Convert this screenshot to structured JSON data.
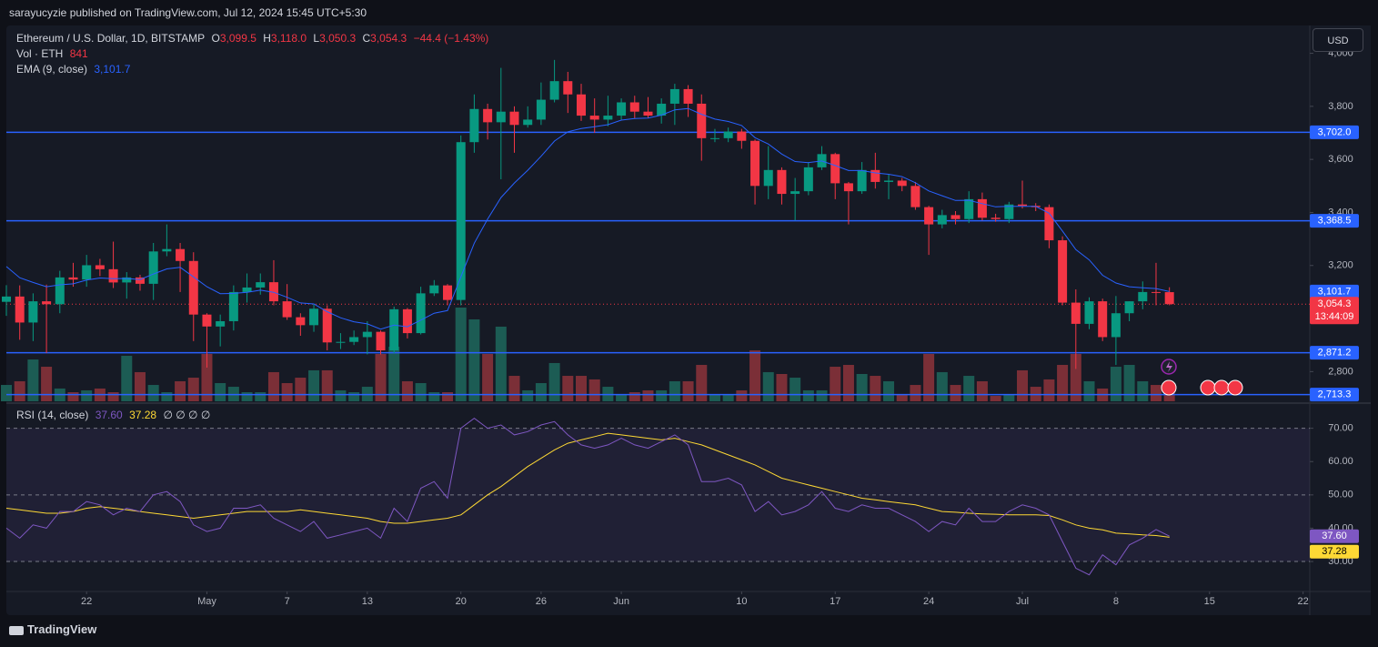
{
  "chart_data": {
    "type": "candlestick",
    "published": "sarayucyzie published on TradingView.com, Jul 12, 2024 15:45 UTC+5:30",
    "legend": {
      "symbol": "Ethereum / U.S. Dollar, 1D, BITSTAMP",
      "o": "O",
      "o_value": "3,099.5",
      "h": "H",
      "h_value": "3,118.0",
      "l": "L",
      "l_value": "3,050.3",
      "c": "C",
      "c_value": "3,054.3",
      "change": "−44.4 (−1.43%)"
    },
    "volume_legend": {
      "name": "Vol · ETH",
      "value": "841"
    },
    "currency": "USD",
    "brand": "TradingView",
    "up_color": "#089981",
    "down_color": "#f23645",
    "volume_up_color": "#1c5c54",
    "volume_down_color": "#7b2f37",
    "x": [
      "2024-04-16",
      "2024-04-17",
      "2024-04-18",
      "2024-04-19",
      "2024-04-20",
      "2024-04-21",
      "2024-04-22",
      "2024-04-23",
      "2024-04-24",
      "2024-04-25",
      "2024-04-26",
      "2024-04-27",
      "2024-04-28",
      "2024-04-29",
      "2024-04-30",
      "2024-05-01",
      "2024-05-02",
      "2024-05-03",
      "2024-05-04",
      "2024-05-05",
      "2024-05-06",
      "2024-05-07",
      "2024-05-08",
      "2024-05-09",
      "2024-05-10",
      "2024-05-11",
      "2024-05-12",
      "2024-05-13",
      "2024-05-14",
      "2024-05-15",
      "2024-05-16",
      "2024-05-17",
      "2024-05-18",
      "2024-05-19",
      "2024-05-20",
      "2024-05-21",
      "2024-05-22",
      "2024-05-23",
      "2024-05-24",
      "2024-05-25",
      "2024-05-26",
      "2024-05-27",
      "2024-05-28",
      "2024-05-29",
      "2024-05-30",
      "2024-05-31",
      "2024-06-01",
      "2024-06-02",
      "2024-06-03",
      "2024-06-04",
      "2024-06-05",
      "2024-06-06",
      "2024-06-07",
      "2024-06-08",
      "2024-06-09",
      "2024-06-10",
      "2024-06-11",
      "2024-06-12",
      "2024-06-13",
      "2024-06-14",
      "2024-06-15",
      "2024-06-16",
      "2024-06-17",
      "2024-06-18",
      "2024-06-19",
      "2024-06-20",
      "2024-06-21",
      "2024-06-22",
      "2024-06-23",
      "2024-06-24",
      "2024-06-25",
      "2024-06-26",
      "2024-06-27",
      "2024-06-28",
      "2024-06-29",
      "2024-06-30",
      "2024-07-01",
      "2024-07-02",
      "2024-07-03",
      "2024-07-04",
      "2024-07-05",
      "2024-07-06",
      "2024-07-07",
      "2024-07-08",
      "2024-07-09",
      "2024-07-10",
      "2024-07-11",
      "2024-07-12"
    ],
    "open": [
      3063,
      3083,
      2985,
      3065,
      3054,
      3155,
      3147,
      3201,
      3186,
      3136,
      3155,
      3131,
      3253,
      3262,
      3217,
      3015,
      2970,
      2990,
      3100,
      3117,
      3137,
      3065,
      3005,
      2975,
      3037,
      2910,
      2912,
      2930,
      2950,
      2880,
      3035,
      2945,
      3095,
      3125,
      3070,
      3665,
      3790,
      3740,
      3780,
      3730,
      3750,
      3825,
      3895,
      3845,
      3765,
      3750,
      3765,
      3815,
      3780,
      3765,
      3810,
      3865,
      3810,
      3680,
      3680,
      3705,
      3670,
      3500,
      3560,
      3470,
      3480,
      3570,
      3620,
      3510,
      3480,
      3560,
      3515,
      3520,
      3500,
      3420,
      3355,
      3390,
      3375,
      3450,
      3380,
      3375,
      3430,
      3425,
      3420,
      3295,
      3060,
      2980,
      3065,
      2930,
      3020,
      3065,
      3100,
      3099.5
    ],
    "high": [
      3126,
      3125,
      3095,
      3128,
      3180,
      3210,
      3240,
      3225,
      3290,
      3175,
      3165,
      3285,
      3355,
      3285,
      3250,
      3020,
      3015,
      3125,
      3170,
      3170,
      3220,
      3130,
      3020,
      3055,
      3050,
      2945,
      2955,
      2990,
      2955,
      3045,
      3040,
      3120,
      3145,
      3130,
      3690,
      3845,
      3810,
      3945,
      3800,
      3800,
      3890,
      3975,
      3930,
      3885,
      3830,
      3840,
      3830,
      3840,
      3835,
      3830,
      3885,
      3880,
      3845,
      3715,
      3720,
      3715,
      3675,
      3650,
      3570,
      3530,
      3590,
      3650,
      3625,
      3515,
      3590,
      3625,
      3545,
      3530,
      3515,
      3425,
      3410,
      3405,
      3480,
      3475,
      3395,
      3440,
      3520,
      3435,
      3430,
      3310,
      3110,
      3080,
      3075,
      3085,
      3065,
      3140,
      3210,
      3118
    ],
    "low": [
      3010,
      2920,
      2915,
      2870,
      3020,
      3120,
      3120,
      3160,
      3115,
      3075,
      3105,
      3070,
      3235,
      3100,
      2915,
      2815,
      2895,
      2955,
      3060,
      3090,
      3050,
      2995,
      2935,
      2950,
      2880,
      2885,
      2900,
      2865,
      2865,
      2870,
      2925,
      2940,
      3085,
      3050,
      3050,
      3625,
      3675,
      3525,
      3625,
      3720,
      3730,
      3815,
      3775,
      3745,
      3700,
      3725,
      3750,
      3755,
      3755,
      3735,
      3730,
      3760,
      3595,
      3665,
      3665,
      3640,
      3430,
      3450,
      3430,
      3370,
      3465,
      3560,
      3450,
      3355,
      3470,
      3490,
      3450,
      3480,
      3410,
      3240,
      3340,
      3355,
      3360,
      3370,
      3365,
      3360,
      3415,
      3405,
      3265,
      3050,
      2810,
      2960,
      2915,
      2825,
      2990,
      3035,
      3050,
      3050.3
    ],
    "close": [
      3083,
      2985,
      3065,
      3054,
      3155,
      3147,
      3201,
      3186,
      3136,
      3155,
      3131,
      3253,
      3262,
      3217,
      3015,
      2970,
      2990,
      3100,
      3117,
      3137,
      3065,
      3005,
      2975,
      3037,
      2910,
      2912,
      2930,
      2950,
      2880,
      3035,
      2945,
      3095,
      3125,
      3070,
      3665,
      3790,
      3740,
      3780,
      3730,
      3750,
      3825,
      3895,
      3845,
      3765,
      3750,
      3765,
      3815,
      3780,
      3765,
      3810,
      3865,
      3810,
      3680,
      3680,
      3705,
      3670,
      3500,
      3560,
      3470,
      3480,
      3570,
      3620,
      3510,
      3480,
      3560,
      3515,
      3520,
      3500,
      3420,
      3355,
      3390,
      3375,
      3450,
      3380,
      3375,
      3430,
      3425,
      3420,
      3295,
      3060,
      2980,
      3065,
      2930,
      3020,
      3065,
      3100,
      3099.5,
      3054.3
    ],
    "volume": [
      1510,
      1850,
      3860,
      3190,
      1180,
      840,
      1010,
      1180,
      840,
      4200,
      2690,
      1510,
      840,
      1850,
      2180,
      4370,
      1680,
      1340,
      840,
      840,
      2690,
      1680,
      2180,
      2860,
      2860,
      1010,
      840,
      1340,
      4370,
      5040,
      1850,
      1680,
      840,
      840,
      8650,
      7560,
      4370,
      6890,
      2350,
      1010,
      1680,
      3530,
      2350,
      2350,
      2020,
      1340,
      670,
      840,
      1010,
      1010,
      1850,
      1850,
      3360,
      670,
      670,
      1010,
      4700,
      2690,
      2520,
      2180,
      1010,
      1010,
      3190,
      3360,
      2520,
      2350,
      1850,
      670,
      1510,
      4370,
      2690,
      1510,
      2350,
      1850,
      500,
      670,
      2860,
      1340,
      2020,
      3360,
      4370,
      1850,
      1180,
      3190,
      3360,
      1850,
      1510,
      841
    ],
    "ema": {
      "name": "EMA (9, close)",
      "color": "#2962ff",
      "label": "3,101.7",
      "values": [
        3196,
        3154,
        3136,
        3120,
        3127,
        3131,
        3145,
        3153,
        3150,
        3151,
        3147,
        3168,
        3187,
        3193,
        3157,
        3120,
        3094,
        3095,
        3099,
        3107,
        3099,
        3080,
        3059,
        3055,
        3026,
        3003,
        2988,
        2980,
        2960,
        2975,
        2969,
        2994,
        3020,
        3030,
        3157,
        3284,
        3375,
        3456,
        3511,
        3559,
        3612,
        3669,
        3704,
        3716,
        3723,
        3731,
        3748,
        3754,
        3756,
        3767,
        3787,
        3792,
        3770,
        3752,
        3743,
        3728,
        3682,
        3658,
        3620,
        3592,
        3588,
        3594,
        3577,
        3558,
        3558,
        3549,
        3544,
        3535,
        3512,
        3481,
        3463,
        3445,
        3446,
        3433,
        3421,
        3423,
        3423,
        3423,
        3397,
        3330,
        3260,
        3221,
        3163,
        3134,
        3120,
        3116,
        3113,
        3101.7
      ]
    },
    "price_label": "3,054.3",
    "countdown": "13:44:09",
    "xlim": [
      "2024-04-16",
      "2024-07-22T12:00:00Z"
    ],
    "xticks": [
      {
        "value": "2024-04-22",
        "label": "22"
      },
      {
        "value": "2024-05-01",
        "label": "May"
      },
      {
        "value": "2024-05-07",
        "label": "7"
      },
      {
        "value": "2024-05-13",
        "label": "13"
      },
      {
        "value": "2024-05-20",
        "label": "20"
      },
      {
        "value": "2024-05-26",
        "label": "26"
      },
      {
        "value": "2024-06-01",
        "label": "Jun"
      },
      {
        "value": "2024-06-10",
        "label": "10"
      },
      {
        "value": "2024-06-17",
        "label": "17"
      },
      {
        "value": "2024-06-24",
        "label": "24"
      },
      {
        "value": "2024-07-01",
        "label": "Jul"
      },
      {
        "value": "2024-07-08",
        "label": "8"
      },
      {
        "value": "2024-07-15",
        "label": "15"
      },
      {
        "value": "2024-07-22",
        "label": "22"
      }
    ],
    "ylim": [
      2688,
      4098
    ],
    "yticks": [
      {
        "value": 2800,
        "label": "2,800"
      },
      {
        "value": 3200,
        "label": "3,200"
      },
      {
        "value": 3400,
        "label": "3,400"
      },
      {
        "value": 3600,
        "label": "3,600"
      },
      {
        "value": 3800,
        "label": "3,800"
      },
      {
        "value": 4000,
        "label": "4,000"
      }
    ],
    "hlines": [
      {
        "value": 3702.0,
        "label": "3,702.0"
      },
      {
        "value": 3368.5,
        "label": "3,368.5"
      },
      {
        "value": 2871.2,
        "label": "2,871.2"
      },
      {
        "value": 2713.3,
        "label": "2,713.3"
      }
    ],
    "hline_color": "#2962ff",
    "grid": false,
    "rsi": {
      "name": "RSI (14, close)",
      "color": "#7e57c2",
      "label": "37.60",
      "empty": "∅ ∅ ∅ ∅",
      "values": [
        40,
        37,
        41,
        40,
        45,
        45,
        48,
        47,
        44,
        46,
        45,
        50,
        51,
        48,
        41,
        39,
        40,
        46,
        46,
        47,
        43,
        41,
        39,
        42,
        37,
        38,
        39,
        40,
        37,
        46,
        42,
        52,
        54,
        49,
        70,
        73,
        70,
        71,
        68,
        69,
        71,
        72,
        68,
        65,
        64,
        65,
        67,
        65,
        64,
        66,
        68,
        65,
        54,
        54,
        55,
        53,
        45,
        48,
        44,
        45,
        47,
        51,
        46,
        45,
        47,
        46,
        46,
        44,
        42,
        39,
        42,
        41,
        46,
        42,
        42,
        45,
        47,
        46,
        44,
        36,
        28,
        26,
        32,
        29,
        35,
        37,
        39.6,
        37.6
      ]
    },
    "rsi_ma": {
      "color": "#fdd835",
      "label": "37.28",
      "values": [
        46,
        45.5,
        45,
        44.5,
        44.5,
        45,
        46,
        46.5,
        46,
        45.5,
        45,
        44.5,
        44,
        43.5,
        43,
        43.5,
        44,
        44.5,
        45,
        45,
        45,
        45,
        45.5,
        45,
        44.5,
        44,
        43.5,
        43,
        42,
        41.5,
        41.5,
        42,
        42.5,
        43,
        44,
        47,
        50,
        52.5,
        55.5,
        58.5,
        61,
        63.5,
        65.5,
        66.5,
        67.5,
        68.5,
        68,
        67.5,
        67,
        66.5,
        67,
        66,
        65,
        63.5,
        62,
        60.5,
        59,
        57,
        55,
        54,
        53,
        52,
        51,
        50,
        49,
        48.5,
        48,
        47.5,
        47,
        46,
        45,
        44.8,
        44.5,
        44.3,
        44.2,
        44,
        44,
        44,
        43.8,
        42.5,
        41,
        40,
        39.5,
        38.5,
        38.3,
        38,
        37.8,
        37.28
      ]
    },
    "rsi_ylim": [
      21,
      77
    ],
    "rsi_yticks": [
      {
        "value": 30,
        "label": "30.00"
      },
      {
        "value": 40,
        "label": "40.00"
      },
      {
        "value": 50,
        "label": "50.00"
      },
      {
        "value": 60,
        "label": "60.00"
      },
      {
        "value": 70,
        "label": "70.00"
      }
    ],
    "rsi_levels": [
      30,
      50,
      70
    ]
  }
}
